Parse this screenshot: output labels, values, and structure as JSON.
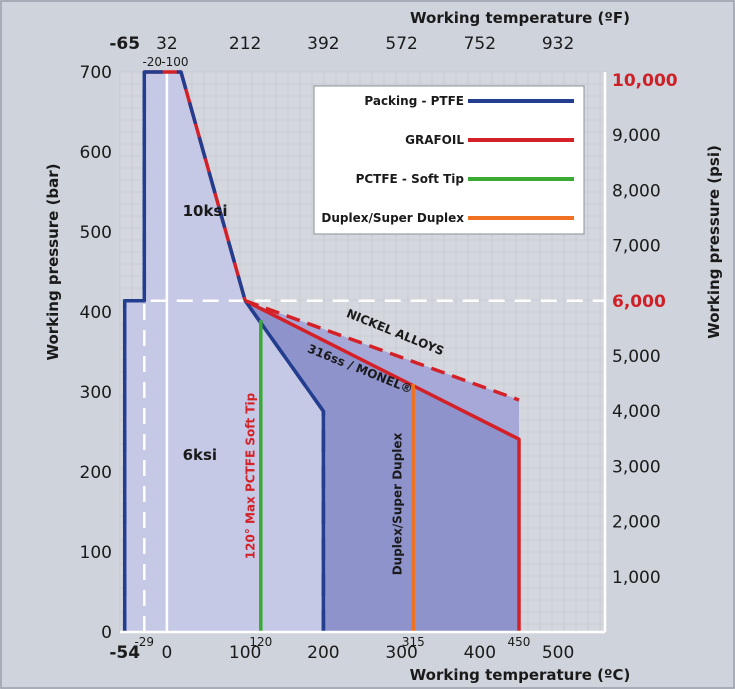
{
  "chart_data": {
    "type": "line",
    "bottom_axis": {
      "title": "Working temperature (ºC)",
      "ticks": [
        "-54",
        "0",
        "100",
        "200",
        "300",
        "400",
        "500"
      ],
      "tick_values": [
        -54,
        0,
        100,
        200,
        300,
        400,
        500
      ],
      "xlim": [
        -60,
        560
      ]
    },
    "top_axis": {
      "title": "Working temperature (ºF)",
      "ticks": [
        "-65",
        "32",
        "212",
        "392",
        "572",
        "752",
        "932"
      ],
      "tick_values_c": [
        -54,
        0,
        100,
        200,
        300,
        400,
        500
      ]
    },
    "left_axis": {
      "title": "Working pressure (bar)",
      "ticks": [
        "0",
        "100",
        "200",
        "300",
        "400",
        "500",
        "600",
        "700"
      ],
      "tick_values": [
        0,
        100,
        200,
        300,
        400,
        500,
        600,
        700
      ],
      "ylim": [
        0,
        700
      ]
    },
    "right_axis": {
      "title": "Working pressure (psi)",
      "ticks": [
        {
          "label": "1,000",
          "bar": 69
        },
        {
          "label": "2,000",
          "bar": 138
        },
        {
          "label": "3,000",
          "bar": 207
        },
        {
          "label": "4,000",
          "bar": 276
        },
        {
          "label": "5,000",
          "bar": 345
        },
        {
          "label": "6,000",
          "bar": 414,
          "highlight": true
        },
        {
          "label": "7,000",
          "bar": 483
        },
        {
          "label": "8,000",
          "bar": 552
        },
        {
          "label": "9,000",
          "bar": 621
        },
        {
          "label": "10,000",
          "bar": 690,
          "highlight": true
        }
      ]
    },
    "small_labels": [
      {
        "text": "-20",
        "x": -29,
        "y": 700,
        "pos": "above"
      },
      {
        "text": "-100",
        "x": 0,
        "y": 700,
        "pos": "above"
      },
      {
        "text": "-29",
        "x": -29,
        "y": 0,
        "pos": "below"
      },
      {
        "text": "120",
        "x": 120,
        "y": 0,
        "pos": "below"
      },
      {
        "text": "315",
        "x": 315,
        "y": 0,
        "pos": "below"
      },
      {
        "text": "450",
        "x": 450,
        "y": 0,
        "pos": "below"
      }
    ],
    "series": [
      {
        "name": "Packing - PTFE",
        "color": "#233d8f",
        "points": [
          [
            -54,
            0
          ],
          [
            -54,
            414
          ],
          [
            -29,
            414
          ],
          [
            -29,
            700
          ],
          [
            18,
            700
          ],
          [
            100,
            414
          ],
          [
            200,
            276
          ],
          [
            200,
            0
          ]
        ]
      },
      {
        "name": "GRAFOIL",
        "color": "#d42127",
        "points": [
          [
            -29,
            700
          ],
          [
            18,
            700
          ],
          [
            100,
            414
          ],
          [
            450,
            241
          ],
          [
            450,
            0
          ]
        ]
      },
      {
        "name": "PCTFE - Soft Tip",
        "color": "#3aaa35",
        "points": [
          [
            120,
            0
          ],
          [
            120,
            390
          ]
        ]
      },
      {
        "name": "Duplex/Super Duplex",
        "color": "#ef7222",
        "points": [
          [
            315,
            0
          ],
          [
            315,
            310
          ]
        ]
      }
    ],
    "nickel_alloys_line": {
      "points": [
        [
          100,
          414
        ],
        [
          450,
          290
        ]
      ],
      "color": "#d42127"
    },
    "white_dashed_lines": [
      {
        "points": [
          [
            -54,
            414
          ],
          [
            560,
            414
          ]
        ]
      },
      {
        "points": [
          [
            -29,
            0
          ],
          [
            -29,
            414
          ]
        ]
      }
    ],
    "white_solid_line": {
      "points": [
        [
          0,
          0
        ],
        [
          0,
          700
        ]
      ]
    },
    "fill_colors": {
      "light": "#c5c8e6",
      "dark": "#8b8fca"
    },
    "region_labels": [
      {
        "text": "10ksi",
        "x": 20,
        "y": 520
      },
      {
        "text": "6ksi",
        "x": 20,
        "y": 215
      }
    ],
    "annotations": [
      {
        "text": "NICKEL ALLOYS",
        "x": 290,
        "y": 370,
        "angle": 22,
        "color": "#1a1a1a"
      },
      {
        "text": "316ss / MONEL®",
        "x": 245,
        "y": 324,
        "angle": 22,
        "color": "#1a1a1a"
      },
      {
        "text": "120° Max PCTFE Soft Tip",
        "x": 112,
        "y": 195,
        "angle": -90,
        "color": "#d42127"
      },
      {
        "text": "Duplex/Super Duplex",
        "x": 300,
        "y": 160,
        "angle": -90,
        "color": "#1a1a1a"
      }
    ]
  }
}
